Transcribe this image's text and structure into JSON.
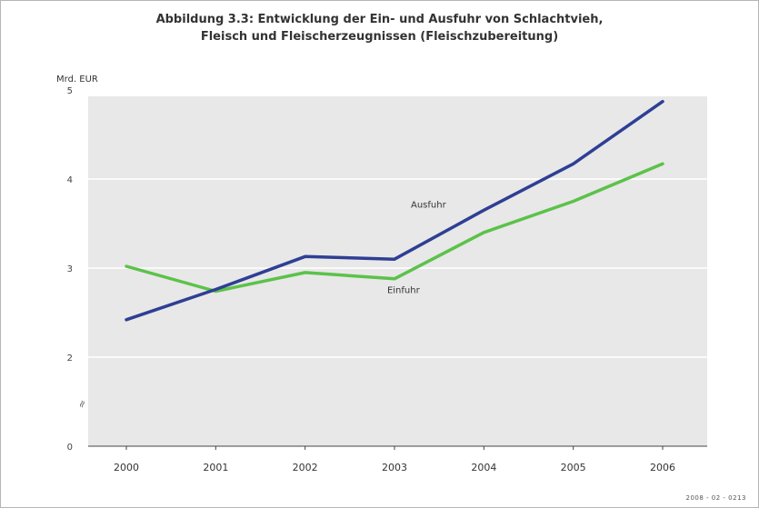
{
  "chart_data": {
    "type": "line",
    "title_lines": [
      "Abbildung 3.3: Entwicklung der Ein- und Ausfuhr von Schlachtvieh,",
      "Fleisch und Fleischerzeugnissen (Fleischzubereitung)"
    ],
    "ylabel": "Mrd. EUR",
    "xlabel": "",
    "categories": [
      "2000",
      "2001",
      "2002",
      "2003",
      "2004",
      "2005",
      "2006"
    ],
    "ylim": [
      0,
      5
    ],
    "yticks": [
      0,
      2,
      3,
      4,
      5
    ],
    "y_break": "≈",
    "grid": true,
    "series": [
      {
        "name": "Ausfuhr",
        "color": "#2e3f94",
        "values": [
          2.42,
          2.76,
          3.13,
          3.1,
          3.65,
          4.17,
          4.87
        ],
        "label_at": [
          3.38,
          3.68
        ]
      },
      {
        "name": "Einfuhr",
        "color": "#5cc24a",
        "values": [
          3.02,
          2.74,
          2.95,
          2.88,
          3.4,
          3.75,
          4.17
        ],
        "label_at": [
          3.1,
          2.72
        ]
      }
    ],
    "footnote": "2008 - 02 - 0213"
  }
}
